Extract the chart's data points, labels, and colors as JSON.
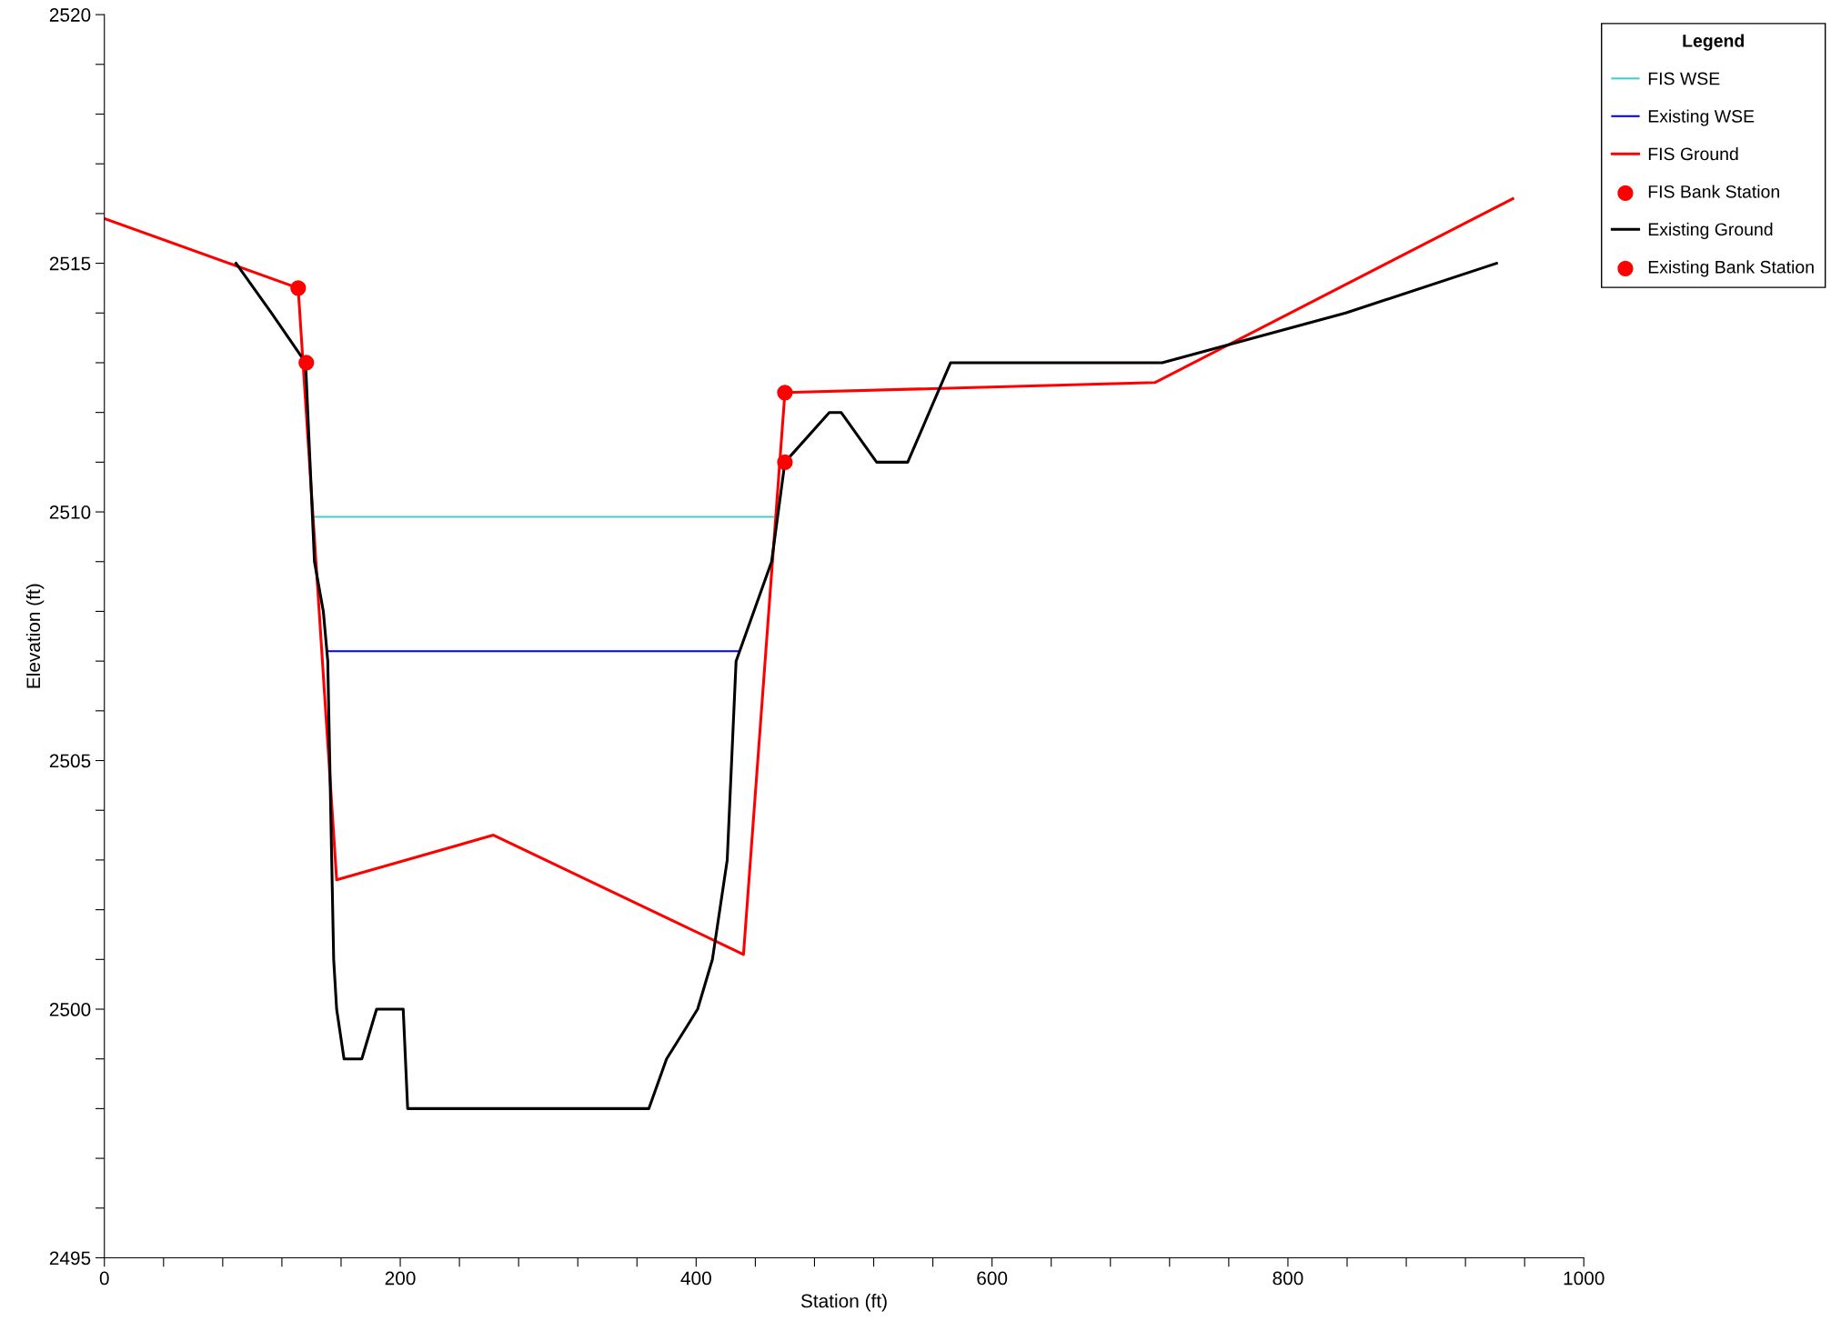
{
  "chart_data": {
    "type": "line",
    "xlabel": "Station (ft)",
    "ylabel": "Elevation (ft)",
    "legend_title": "Legend",
    "legend": "right",
    "grid": false,
    "xlim": [
      0,
      1000
    ],
    "ylim": [
      2495,
      2520
    ],
    "xticks": [
      0,
      {
        "value": 40,
        "label": null
      },
      {
        "value": 80,
        "label": null
      },
      {
        "value": 120,
        "label": null
      },
      {
        "value": 160,
        "label": null
      },
      200,
      {
        "value": 240,
        "label": null
      },
      {
        "value": 280,
        "label": null
      },
      {
        "value": 320,
        "label": null
      },
      {
        "value": 360,
        "label": null
      },
      400,
      {
        "value": 440,
        "label": null
      },
      {
        "value": 480,
        "label": null
      },
      {
        "value": 520,
        "label": null
      },
      {
        "value": 560,
        "label": null
      },
      600,
      {
        "value": 640,
        "label": null
      },
      {
        "value": 680,
        "label": null
      },
      {
        "value": 720,
        "label": null
      },
      {
        "value": 760,
        "label": null
      },
      800,
      {
        "value": 840,
        "label": null
      },
      {
        "value": 880,
        "label": null
      },
      {
        "value": 920,
        "label": null
      },
      {
        "value": 960,
        "label": null
      },
      1000
    ],
    "yticks": [
      2495,
      {
        "value": 2496,
        "label": null
      },
      {
        "value": 2497,
        "label": null
      },
      {
        "value": 2498,
        "label": null
      },
      {
        "value": 2499,
        "label": null
      },
      2500,
      {
        "value": 2501,
        "label": null
      },
      {
        "value": 2502,
        "label": null
      },
      {
        "value": 2503,
        "label": null
      },
      {
        "value": 2504,
        "label": null
      },
      2505,
      {
        "value": 2506,
        "label": null
      },
      {
        "value": 2507,
        "label": null
      },
      {
        "value": 2508,
        "label": null
      },
      {
        "value": 2509,
        "label": null
      },
      2510,
      {
        "value": 2511,
        "label": null
      },
      {
        "value": 2512,
        "label": null
      },
      {
        "value": 2513,
        "label": null
      },
      {
        "value": 2514,
        "label": null
      },
      2515,
      {
        "value": 2516,
        "label": null
      },
      {
        "value": 2517,
        "label": null
      },
      {
        "value": 2518,
        "label": null
      },
      {
        "value": 2519,
        "label": null
      },
      2520
    ],
    "series": [
      {
        "name": "FIS WSE",
        "color": "#40d0d0",
        "x": [
          142,
          452
        ],
        "values": [
          2509.9,
          2509.9
        ]
      },
      {
        "name": "Existing WSE",
        "color": "#0000ff",
        "x": [
          151,
          429
        ],
        "values": [
          2507.2,
          2507.2
        ]
      },
      {
        "name": "FIS Ground",
        "color": "#ff0000",
        "x": [
          0,
          131,
          157,
          263,
          432,
          460,
          710,
          952
        ],
        "values": [
          2515.9,
          2514.5,
          2502.6,
          2503.5,
          2501.1,
          2512.4,
          2512.6,
          2516.3
        ]
      },
      {
        "name": "FIS Bank Station",
        "type": "scatter",
        "marker": "circle",
        "color": "#ff0000",
        "x": [
          131,
          460
        ],
        "values": [
          2514.5,
          2512.4
        ]
      },
      {
        "name": "Existing Ground",
        "color": "#000000",
        "x": [
          89,
          113,
          136,
          142,
          148,
          151,
          154,
          155,
          157,
          162,
          174,
          184,
          202,
          205,
          368,
          380,
          401,
          411,
          421,
          427,
          451,
          460,
          490,
          498,
          522,
          543,
          572,
          715,
          839,
          941
        ],
        "values": [
          2515,
          2514,
          2513,
          2509,
          2508,
          2507,
          2502.5,
          2501,
          2500,
          2499,
          2499,
          2500,
          2500,
          2498,
          2498,
          2499,
          2500,
          2501,
          2503,
          2507,
          2509,
          2511,
          2512,
          2512,
          2511,
          2511,
          2513,
          2513,
          2514,
          2515
        ]
      },
      {
        "name": "Existing Bank Station",
        "type": "scatter",
        "marker": "circle",
        "color": "#ff0000",
        "x": [
          136.5,
          460
        ],
        "values": [
          2513.0,
          2511.0
        ]
      }
    ]
  }
}
